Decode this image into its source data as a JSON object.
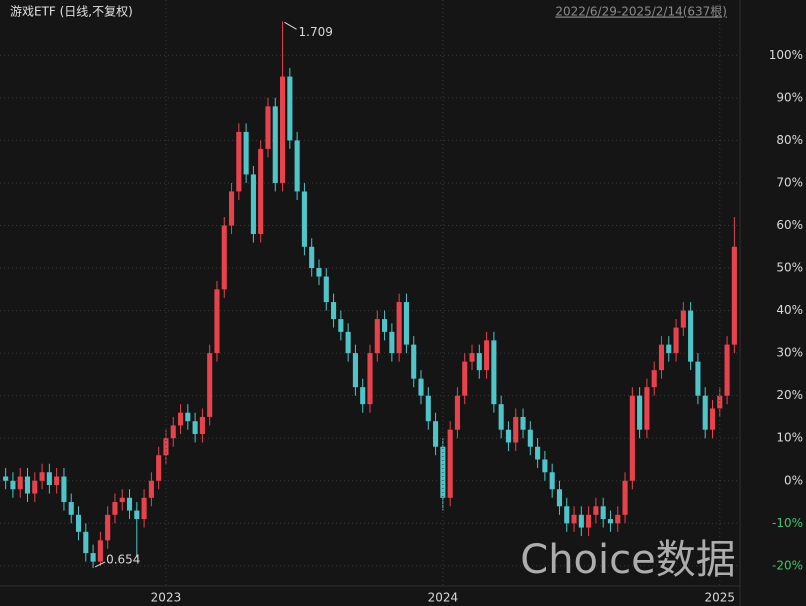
{
  "chart_data": {
    "type": "candlestick",
    "title": "游戏ETF (日线,不复权)",
    "subtitle": "2022/6/29-2025/2/14(637根)",
    "watermark": "Choice数据",
    "annotations": {
      "max_label": "1.709",
      "min_label": "0.654"
    },
    "up_color": "#e8434d",
    "down_color": "#4fc4c9",
    "categories": [
      null,
      null,
      null,
      null,
      null,
      null,
      null,
      null,
      null,
      null,
      null,
      null,
      null,
      null,
      null,
      null,
      null,
      null,
      null,
      null,
      null,
      null,
      "2023",
      null,
      null,
      null,
      null,
      null,
      null,
      null,
      null,
      null,
      null,
      null,
      null,
      null,
      null,
      null,
      null,
      null,
      null,
      null,
      null,
      null,
      null,
      null,
      null,
      null,
      null,
      null,
      null,
      null,
      null,
      null,
      null,
      null,
      null,
      null,
      null,
      null,
      "2024",
      null,
      null,
      null,
      null,
      null,
      null,
      null,
      null,
      null,
      null,
      null,
      null,
      null,
      null,
      null,
      null,
      null,
      null,
      null,
      null,
      null,
      null,
      null,
      null,
      null,
      null,
      null,
      null,
      null,
      null,
      null,
      null,
      null,
      null,
      null,
      null,
      null,
      "2025",
      null,
      null
    ],
    "open": [
      1,
      0,
      -2,
      1,
      -3,
      0,
      2,
      -1,
      1,
      -5,
      -8,
      -12,
      -17,
      -19,
      -14,
      -8,
      -5,
      -4,
      -7,
      -9,
      -4,
      0,
      6,
      10,
      13,
      16,
      14,
      11,
      15,
      30,
      45,
      60,
      68,
      82,
      72,
      58,
      78,
      88,
      70,
      95,
      80,
      68,
      55,
      50,
      48,
      42,
      38,
      35,
      30,
      22,
      18,
      30,
      38,
      35,
      30,
      42,
      32,
      24,
      20,
      14,
      8,
      -4,
      12,
      20,
      28,
      30,
      26,
      33,
      18,
      12,
      9,
      15,
      12,
      8,
      5,
      2,
      -2,
      -6,
      -10,
      -8,
      -11,
      -8,
      -6,
      -9,
      -10,
      -8,
      0,
      20,
      12,
      22,
      26,
      32,
      30,
      36,
      40,
      28,
      20,
      12,
      17,
      20,
      32
    ],
    "high": [
      3,
      2,
      3,
      3,
      2,
      4,
      4,
      3,
      3,
      -3,
      -6,
      -10,
      -15,
      -12,
      -6,
      -3,
      -2,
      -2,
      -5,
      -2,
      2,
      8,
      12,
      15,
      18,
      18,
      16,
      17,
      32,
      47,
      62,
      70,
      84,
      84,
      74,
      80,
      90,
      90,
      108,
      97,
      82,
      70,
      57,
      52,
      50,
      44,
      40,
      37,
      32,
      24,
      32,
      40,
      40,
      37,
      44,
      44,
      34,
      26,
      22,
      16,
      10,
      14,
      22,
      30,
      32,
      32,
      35,
      35,
      20,
      14,
      17,
      17,
      14,
      10,
      7,
      4,
      0,
      -4,
      -6,
      -6,
      -6,
      -4,
      -4,
      -7,
      -6,
      2,
      22,
      22,
      24,
      28,
      34,
      34,
      38,
      42,
      42,
      30,
      22,
      19,
      22,
      34,
      62
    ],
    "low": [
      -2,
      -4,
      -4,
      -5,
      -5,
      -2,
      -3,
      -3,
      -7,
      -10,
      -14,
      -19,
      -20.5,
      -20,
      -16,
      -10,
      -7,
      -9,
      -18,
      -11,
      -6,
      -2,
      4,
      8,
      11,
      12,
      9,
      9,
      13,
      28,
      43,
      58,
      66,
      70,
      56,
      56,
      76,
      68,
      68,
      78,
      66,
      53,
      48,
      46,
      40,
      36,
      33,
      28,
      20,
      16,
      16,
      28,
      33,
      28,
      28,
      30,
      22,
      18,
      12,
      6,
      -7,
      -6,
      10,
      18,
      26,
      24,
      24,
      16,
      10,
      7,
      7,
      10,
      6,
      3,
      0,
      -4,
      -8,
      -12,
      -12,
      -13,
      -13,
      -10,
      -11,
      -12,
      -12,
      -10,
      -2,
      10,
      10,
      20,
      24,
      28,
      28,
      34,
      26,
      18,
      10,
      10,
      15,
      18,
      30
    ],
    "close": [
      0,
      -2,
      1,
      -3,
      0,
      2,
      -1,
      1,
      -5,
      -8,
      -12,
      -17,
      -19,
      -14,
      -8,
      -5,
      -4,
      -7,
      -9,
      -4,
      0,
      6,
      10,
      13,
      16,
      14,
      11,
      15,
      30,
      45,
      60,
      68,
      82,
      72,
      58,
      78,
      88,
      70,
      95,
      80,
      68,
      55,
      50,
      48,
      42,
      38,
      35,
      30,
      22,
      18,
      30,
      38,
      35,
      30,
      42,
      32,
      24,
      20,
      14,
      8,
      -4,
      12,
      20,
      28,
      30,
      26,
      33,
      18,
      12,
      9,
      15,
      12,
      8,
      5,
      2,
      -2,
      -6,
      -10,
      -8,
      -11,
      -8,
      -6,
      -9,
      -10,
      -8,
      0,
      20,
      12,
      22,
      26,
      32,
      30,
      36,
      40,
      28,
      20,
      12,
      17,
      20,
      32,
      55
    ],
    "ylim": [
      -24.5,
      113
    ],
    "yticks": [
      {
        "value": -20,
        "label": "-20%"
      },
      {
        "value": -10,
        "label": "-10%"
      },
      {
        "value": 0,
        "label": "0%"
      },
      {
        "value": 10,
        "label": "10%"
      },
      {
        "value": 20,
        "label": "20%"
      },
      {
        "value": 30,
        "label": "30%"
      },
      {
        "value": 40,
        "label": "40%"
      },
      {
        "value": 50,
        "label": "50%"
      },
      {
        "value": 60,
        "label": "60%"
      },
      {
        "value": 70,
        "label": "70%"
      },
      {
        "value": 80,
        "label": "80%"
      },
      {
        "value": 90,
        "label": "90%"
      },
      {
        "value": 100,
        "label": "100%"
      }
    ],
    "grid": true
  }
}
